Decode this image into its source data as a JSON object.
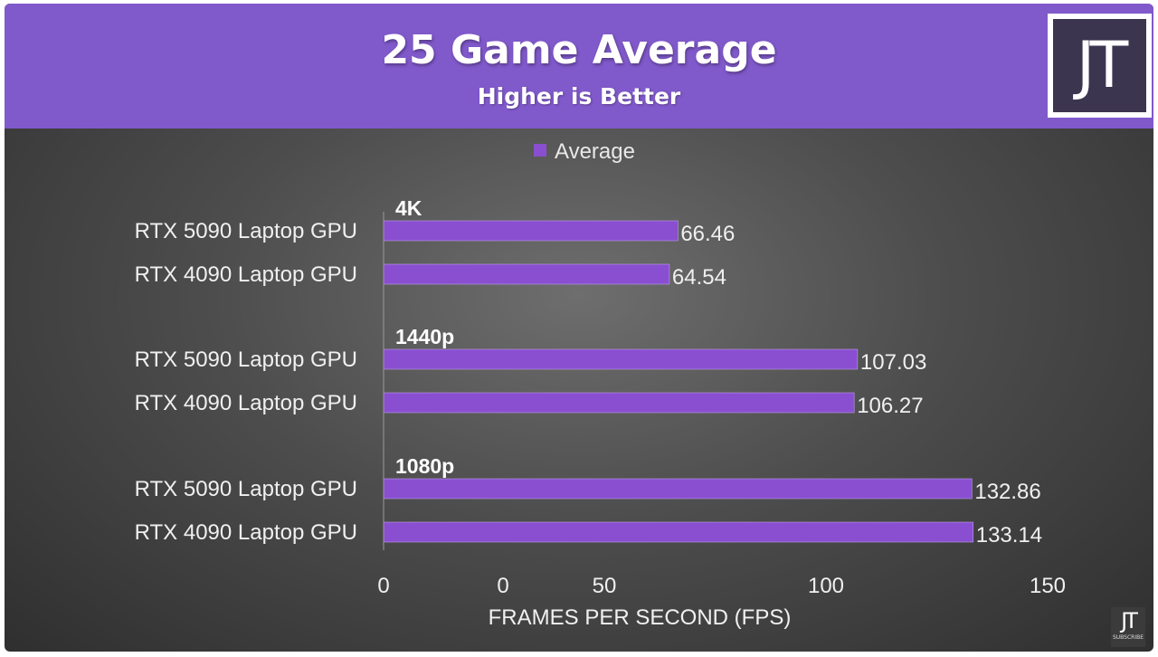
{
  "header": {
    "title": "25 Game Average",
    "subtitle": "Higher is Better",
    "logo_text": "JT",
    "background_color": "#8059cb"
  },
  "watermark": {
    "logo_text": "JT",
    "label": "SUBSCRIBE"
  },
  "chart_data": {
    "type": "bar",
    "orientation": "horizontal",
    "title": "25 Game Average",
    "subtitle": "Higher is Better",
    "xlabel": "FRAMES PER SECOND (FPS)",
    "ylabel": "",
    "xlim": [
      0,
      150
    ],
    "x_tick_labels": [
      "0",
      "0",
      "50",
      "100",
      "150"
    ],
    "legend": {
      "entries": [
        "Average"
      ],
      "position": "top"
    },
    "grid": false,
    "bar_color": "#8a4fd0",
    "groups": [
      {
        "name": "4K",
        "categories": [
          "RTX 5090 Laptop GPU",
          "RTX 4090 Laptop GPU"
        ],
        "values": [
          66.46,
          64.54
        ],
        "value_labels": [
          "66.46",
          "64.54"
        ]
      },
      {
        "name": "1440p",
        "categories": [
          "RTX 5090 Laptop GPU",
          "RTX 4090 Laptop GPU"
        ],
        "values": [
          107.03,
          106.27
        ],
        "value_labels": [
          "107.03",
          "106.27"
        ]
      },
      {
        "name": "1080p",
        "categories": [
          "RTX 5090 Laptop GPU",
          "RTX 4090 Laptop GPU"
        ],
        "values": [
          132.86,
          133.14
        ],
        "value_labels": [
          "132.86",
          "133.14"
        ]
      }
    ],
    "series": [
      {
        "name": "Average",
        "values": [
          66.46,
          64.54,
          107.03,
          106.27,
          132.86,
          133.14
        ]
      }
    ]
  }
}
